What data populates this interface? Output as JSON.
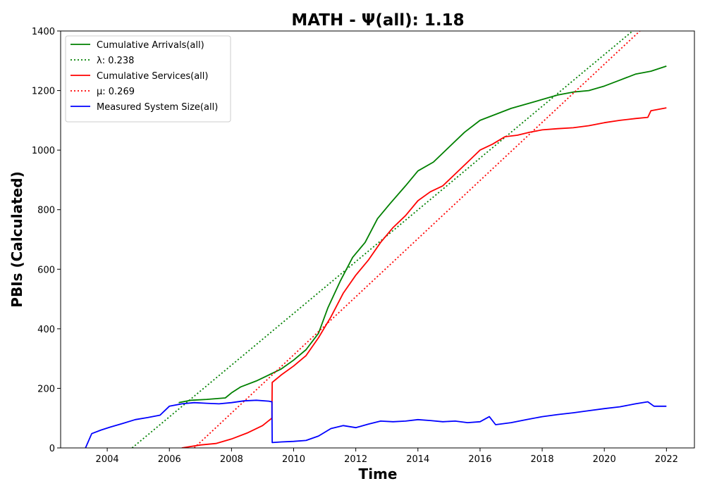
{
  "chart_data": {
    "type": "line",
    "title": "MATH -  Ψ(all): 1.18",
    "xlabel": "Time",
    "ylabel": "PBIs (Calculated)",
    "xlim": [
      2002.5,
      2022.9
    ],
    "ylim": [
      0,
      1400
    ],
    "xticks": [
      2004,
      2006,
      2008,
      2010,
      2012,
      2014,
      2016,
      2018,
      2020,
      2022
    ],
    "yticks": [
      0,
      200,
      400,
      600,
      800,
      1000,
      1200,
      1400
    ],
    "grid": false,
    "legend_position": "top-left",
    "series": [
      {
        "name": "Cumulative Arrivals(all)",
        "color": "#008000",
        "style": "solid",
        "x": [
          2006.3,
          2006.7,
          2007.2,
          2007.8,
          2008.0,
          2008.3,
          2008.8,
          2009.2,
          2009.6,
          2010.0,
          2010.4,
          2010.8,
          2011.1,
          2011.5,
          2011.9,
          2012.3,
          2012.7,
          2013.1,
          2013.6,
          2014.0,
          2014.5,
          2015.0,
          2015.5,
          2016.0,
          2016.5,
          2017.0,
          2017.5,
          2018.0,
          2018.5,
          2019.0,
          2019.5,
          2020.0,
          2020.5,
          2021.0,
          2021.5,
          2022.0
        ],
        "y": [
          152,
          160,
          163,
          168,
          185,
          205,
          225,
          245,
          265,
          295,
          330,
          385,
          470,
          560,
          640,
          690,
          770,
          820,
          880,
          930,
          960,
          1010,
          1060,
          1100,
          1120,
          1140,
          1155,
          1170,
          1185,
          1195,
          1200,
          1215,
          1235,
          1255,
          1265,
          1282
        ]
      },
      {
        "name": "λ: 0.238",
        "color": "#008000",
        "style": "dotted",
        "x": [
          2004.8,
          2021.2
        ],
        "y": [
          0,
          1425
        ]
      },
      {
        "name": "Cumulative Services(all)",
        "color": "#ff0000",
        "style": "solid",
        "x": [
          2006.4,
          2007.0,
          2007.5,
          2008.0,
          2008.5,
          2009.0,
          2009.3,
          2009.31,
          2009.6,
          2010.0,
          2010.4,
          2010.8,
          2011.2,
          2011.6,
          2012.0,
          2012.4,
          2012.8,
          2013.2,
          2013.6,
          2014.0,
          2014.4,
          2014.8,
          2015.2,
          2015.6,
          2016.0,
          2016.4,
          2016.8,
          2017.2,
          2017.6,
          2018.0,
          2018.5,
          2019.0,
          2019.5,
          2020.0,
          2020.5,
          2021.0,
          2021.4,
          2021.5,
          2022.0
        ],
        "y": [
          0,
          10,
          15,
          30,
          50,
          75,
          100,
          220,
          245,
          275,
          310,
          370,
          440,
          520,
          580,
          630,
          690,
          740,
          780,
          830,
          860,
          880,
          920,
          960,
          1000,
          1020,
          1045,
          1050,
          1060,
          1068,
          1072,
          1075,
          1082,
          1092,
          1100,
          1106,
          1110,
          1132,
          1142
        ]
      },
      {
        "name": "μ: 0.269",
        "color": "#ff0000",
        "style": "dotted",
        "x": [
          2006.8,
          2021.4
        ],
        "y": [
          0,
          1425
        ]
      },
      {
        "name": "Measured System Size(all)",
        "color": "#0000ff",
        "style": "solid",
        "x": [
          2003.3,
          2003.5,
          2003.8,
          2004.1,
          2004.5,
          2004.9,
          2005.3,
          2005.7,
          2006.0,
          2006.4,
          2006.8,
          2007.2,
          2007.6,
          2008.0,
          2008.4,
          2008.8,
          2009.2,
          2009.3,
          2009.31,
          2009.6,
          2010.0,
          2010.4,
          2010.8,
          2011.2,
          2011.6,
          2012.0,
          2012.4,
          2012.8,
          2013.2,
          2013.6,
          2014.0,
          2014.4,
          2014.8,
          2015.2,
          2015.6,
          2016.0,
          2016.3,
          2016.5,
          2017.0,
          2017.5,
          2018.0,
          2018.5,
          2019.0,
          2019.5,
          2020.0,
          2020.5,
          2021.0,
          2021.4,
          2021.6,
          2022.0
        ],
        "y": [
          0,
          48,
          60,
          70,
          82,
          95,
          102,
          110,
          140,
          148,
          152,
          150,
          148,
          152,
          158,
          160,
          157,
          155,
          18,
          20,
          22,
          25,
          40,
          65,
          75,
          68,
          80,
          90,
          88,
          90,
          95,
          92,
          88,
          90,
          85,
          88,
          105,
          78,
          85,
          95,
          105,
          112,
          118,
          125,
          132,
          138,
          148,
          155,
          140,
          140
        ]
      }
    ]
  }
}
